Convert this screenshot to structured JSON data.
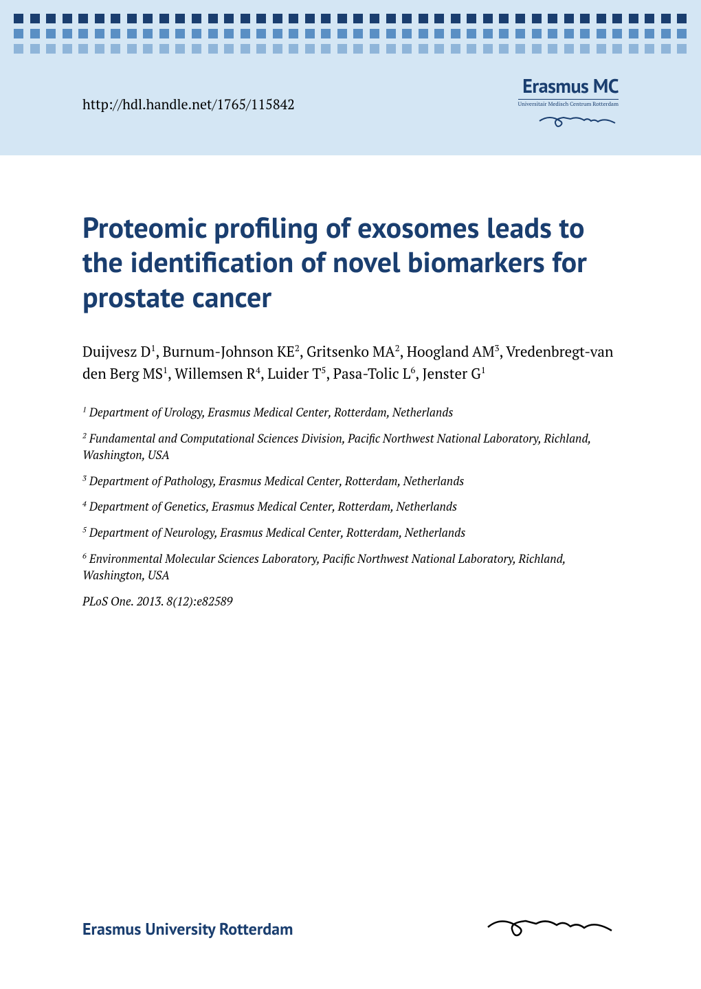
{
  "header": {
    "url": "http://hdl.handle.net/1765/115842",
    "logo_main": "Erasmus MC",
    "logo_sub": "Universitair Medisch Centrum Rotterdam"
  },
  "dots": {
    "rows": [
      {
        "count": 42,
        "size": 14,
        "color": "#1a3e6f"
      },
      {
        "count": 42,
        "size": 14,
        "color": "#5a8fc4"
      },
      {
        "count": 42,
        "size": 14,
        "color": "#8fb5d9"
      }
    ],
    "background_color": "#d4e6f4"
  },
  "title": "Proteomic profiling of exosomes leads to the identification of novel biomarkers for prostate cancer",
  "title_color": "#1a3e6f",
  "title_fontsize": 42,
  "authors_html": "Duijvesz D<sup>1</sup>, Burnum-Johnson KE<sup>2</sup>, Gritsenko MA<sup>2</sup>, Hoogland AM<sup>3</sup>, Vredenbregt-van den Berg MS<sup>1</sup>, Willemsen R<sup>4</sup>, Luider T<sup>5</sup>, Pasa-Tolic L<sup>6</sup>, Jenster G<sup>1</sup>",
  "affiliations": [
    {
      "num": "1",
      "text": "Department of Urology, Erasmus Medical Center, Rotterdam, Netherlands"
    },
    {
      "num": "2",
      "text": "Fundamental and Computational Sciences Division, Pacific Northwest National Laboratory, Richland, Washington, USA"
    },
    {
      "num": "3",
      "text": "Department of Pathology, Erasmus Medical Center, Rotterdam, Netherlands"
    },
    {
      "num": "4",
      "text": "Department of Genetics, Erasmus Medical Center, Rotterdam, Netherlands"
    },
    {
      "num": "5",
      "text": "Department of Neurology, Erasmus Medical Center, Rotterdam, Netherlands"
    },
    {
      "num": "6",
      "text": "Environmental Molecular Sciences Laboratory, Pacific Northwest National Laboratory, Richland, Washington, USA"
    }
  ],
  "citation": "PLoS One. 2013. 8(12):e82589",
  "footer": {
    "text": "Erasmus University Rotterdam",
    "text_color": "#1a3e6f"
  },
  "colors": {
    "header_bg": "#d4e6f4",
    "primary": "#1a3e6f",
    "body_text": "#000000",
    "page_bg": "#ffffff"
  }
}
